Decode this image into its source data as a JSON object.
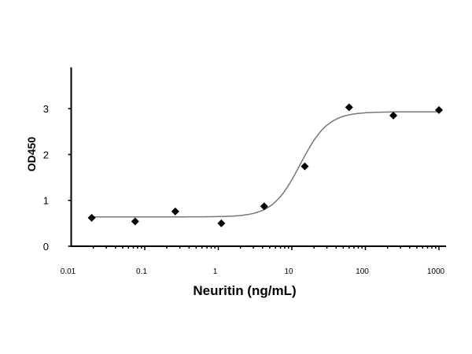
{
  "chart_data": {
    "type": "scatter",
    "title": "",
    "xlabel": "Neuritin (ng/mL)",
    "ylabel": "OD450",
    "x_scale": "log",
    "xlim": [
      0.01,
      1000
    ],
    "ylim": [
      0,
      3.9
    ],
    "x_ticks": [
      0.01,
      0.1,
      1,
      10,
      100,
      1000
    ],
    "x_tick_labels": [
      "0.01",
      "0.1",
      "1",
      "10",
      "100",
      "1000"
    ],
    "y_ticks": [
      0,
      1,
      2,
      3
    ],
    "y_tick_labels": [
      "0",
      "1",
      "2",
      "3"
    ],
    "grid": false,
    "series": [
      {
        "marker": "diamond",
        "color": "#000000",
        "x": [
          0.019,
          0.074,
          0.26,
          1.1,
          4.2,
          15,
          60,
          240,
          1000
        ],
        "y": [
          0.62,
          0.54,
          0.76,
          0.5,
          0.87,
          1.74,
          3.03,
          2.85,
          2.97
        ]
      }
    ],
    "fit_curve": {
      "model": "4PL",
      "color": "#777777",
      "bottom": 0.64,
      "top": 2.93,
      "ec50": 13,
      "hill": 2.3,
      "x_range": [
        0.019,
        1000
      ]
    }
  }
}
